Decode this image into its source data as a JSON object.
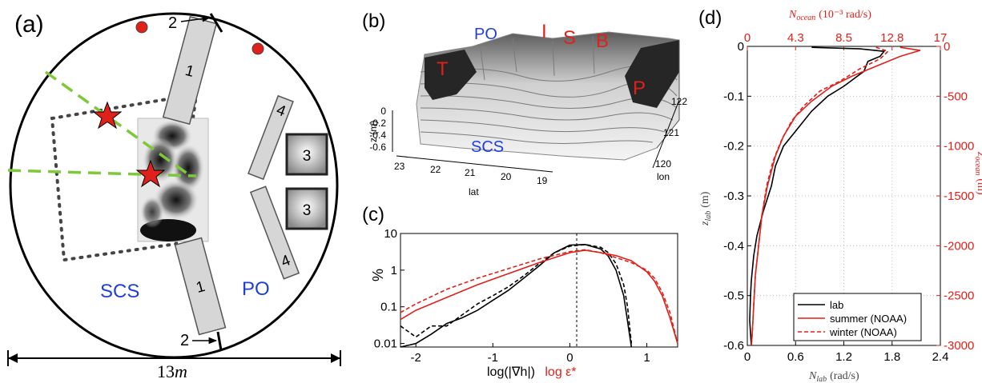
{
  "colors": {
    "red": "#e0201a",
    "blue": "#1f3fd8",
    "green": "#7ec83a",
    "grey": "#d6d6d6"
  },
  "panel_a": {
    "label": "(a)",
    "scale": "13",
    "scale_unit": "m",
    "region_left": "SCS",
    "region_right": "PO",
    "blocks": [
      "1",
      "1",
      "3",
      "3",
      "4",
      "4"
    ],
    "gates": [
      "2",
      "2"
    ],
    "icons": [
      "red-dot-icon",
      "red-star-icon",
      "arrow-icon"
    ]
  },
  "panel_b": {
    "label": "(b)",
    "region_top": "PO",
    "region_bottom": "SCS",
    "letters": [
      "T",
      "I",
      "S",
      "B",
      "P"
    ],
    "z_label": "z (m)",
    "z_ticks": [
      "0",
      "-0.2",
      "-0.4",
      "-0.6"
    ],
    "lat_label": "lat",
    "lat_ticks": [
      "23",
      "22",
      "21",
      "20",
      "19"
    ],
    "lon_label": "lon",
    "lon_ticks": [
      "122",
      "121",
      "120"
    ]
  },
  "panel_c": {
    "label": "(c)",
    "ylabel": "%",
    "xlabel_black": "log(|∇h|)",
    "xlabel_red": "log ε*",
    "y_ticks": [
      "10",
      "1",
      "0.1",
      "0.01"
    ],
    "x_ticks": [
      "-2",
      "-1",
      "0",
      "1"
    ]
  },
  "panel_d": {
    "label": "(d)",
    "top_label": "N",
    "top_label_sub": "ocean",
    "top_label_units": "(10⁻³ rad/s)",
    "bottom_label": "N",
    "bottom_label_sub": "lab",
    "bottom_label_units": "(rad/s)",
    "left_label": "z",
    "left_label_sub": "lab",
    "left_label_units": "(m)",
    "right_label": "z",
    "right_label_sub": "ocean",
    "right_label_units": "(m)",
    "top_ticks": [
      "0",
      "4.3",
      "8.5",
      "12.8",
      "17"
    ],
    "bottom_ticks": [
      "0",
      "0.6",
      "1.2",
      "1.8",
      "2.4"
    ],
    "left_ticks": [
      "0",
      "-0.1",
      "-0.2",
      "-0.3",
      "-0.4",
      "-0.5",
      "-0.6"
    ],
    "right_ticks": [
      "0",
      "-500",
      "-1000",
      "-1500",
      "-2000",
      "-2500",
      "-3000"
    ],
    "legend": [
      "lab",
      "summer (NOAA)",
      "winter (NOAA)"
    ]
  },
  "chart_data": [
    {
      "type": "line",
      "panel": "(c)",
      "xlabel": "log(|∇h|)  log ε*",
      "ylabel": "%",
      "xlim": [
        -2.2,
        1.4
      ],
      "ylim": [
        0.008,
        10
      ],
      "yscale": "log",
      "grid": false,
      "series": [
        {
          "line": "solid",
          "color": "black",
          "x": [
            -2.2,
            -2.0,
            -1.8,
            -1.6,
            -1.4,
            -1.2,
            -1.0,
            -0.8,
            -0.6,
            -0.4,
            -0.2,
            0.0,
            0.2,
            0.4,
            0.5,
            0.6,
            0.7,
            0.75,
            0.8
          ],
          "y": [
            0.008,
            0.01,
            0.018,
            0.035,
            0.05,
            0.08,
            0.15,
            0.28,
            0.6,
            1.3,
            3.0,
            4.8,
            5.0,
            3.8,
            2.4,
            1.0,
            0.2,
            0.04,
            0.008
          ]
        },
        {
          "line": "dashed",
          "color": "black",
          "x": [
            -2.2,
            -2.0,
            -1.8,
            -1.6,
            -1.4,
            -1.2,
            -1.0,
            -0.8,
            -0.6,
            -0.4,
            -0.2,
            0.0,
            0.2,
            0.4,
            0.5,
            0.6,
            0.7,
            0.75,
            0.8
          ],
          "y": [
            0.03,
            0.015,
            0.03,
            0.03,
            0.06,
            0.12,
            0.2,
            0.35,
            0.7,
            1.5,
            3.0,
            4.5,
            5.0,
            4.2,
            3.0,
            1.5,
            0.4,
            0.1,
            0.01
          ]
        },
        {
          "line": "solid",
          "color": "red",
          "x": [
            -2.2,
            -2.0,
            -1.6,
            -1.2,
            -0.8,
            -0.4,
            0.0,
            0.2,
            0.4,
            0.6,
            0.8,
            1.0,
            1.1,
            1.2,
            1.3,
            1.4
          ],
          "y": [
            0.045,
            0.08,
            0.18,
            0.4,
            0.8,
            1.6,
            3.0,
            3.5,
            3.0,
            2.5,
            1.8,
            0.9,
            0.5,
            0.2,
            0.05,
            0.01
          ]
        },
        {
          "line": "dashed",
          "color": "red",
          "x": [
            -2.2,
            -2.0,
            -1.6,
            -1.2,
            -0.8,
            -0.4,
            0.0,
            0.2,
            0.4,
            0.6,
            0.8,
            1.0,
            1.1,
            1.2,
            1.3,
            1.4
          ],
          "y": [
            0.07,
            0.12,
            0.3,
            0.6,
            1.1,
            2.0,
            3.2,
            3.6,
            3.0,
            2.2,
            1.6,
            1.0,
            0.6,
            0.25,
            0.07,
            0.01
          ]
        }
      ]
    },
    {
      "type": "line",
      "panel": "(d)",
      "xlabel": "N_lab (rad/s)",
      "ylabel": "z_lab (m)",
      "xlim": [
        0,
        2.4
      ],
      "ylim": [
        -0.6,
        0
      ],
      "grid": true,
      "legend_position": "bottom-right",
      "series": [
        {
          "name": "lab",
          "line": "solid",
          "color": "black",
          "x": [
            0.8,
            1.4,
            1.7,
            1.65,
            1.5,
            1.45,
            1.2,
            1.0,
            0.8,
            0.6,
            0.45,
            0.35,
            0.3,
            0.2,
            0.12,
            0.08,
            0.05,
            0.04,
            0.03,
            0.05
          ],
          "y": [
            -0.002,
            -0.005,
            -0.01,
            -0.02,
            -0.03,
            -0.05,
            -0.08,
            -0.1,
            -0.13,
            -0.17,
            -0.2,
            -0.24,
            -0.28,
            -0.33,
            -0.38,
            -0.42,
            -0.47,
            -0.5,
            -0.55,
            -0.6
          ]
        },
        {
          "name": "summer (NOAA)",
          "line": "solid",
          "color": "red",
          "x": [
            1.9,
            2.15,
            1.9,
            1.6,
            1.3,
            1.05,
            0.8,
            0.6,
            0.45,
            0.35,
            0.25,
            0.18,
            0.14,
            0.1,
            0.08,
            0.06,
            0.05
          ],
          "y": [
            -0.002,
            -0.008,
            -0.02,
            -0.04,
            -0.06,
            -0.08,
            -0.11,
            -0.14,
            -0.18,
            -0.22,
            -0.28,
            -0.34,
            -0.4,
            -0.46,
            -0.52,
            -0.58,
            -0.6
          ]
        },
        {
          "name": "winter (NOAA)",
          "line": "dashed",
          "color": "red",
          "x": [
            1.6,
            1.75,
            1.65,
            1.4,
            1.15,
            0.9,
            0.7,
            0.55,
            0.42,
            0.32,
            0.24,
            0.18,
            0.14,
            0.1,
            0.08,
            0.06,
            0.05
          ],
          "y": [
            -0.002,
            -0.01,
            -0.025,
            -0.045,
            -0.07,
            -0.09,
            -0.12,
            -0.15,
            -0.19,
            -0.23,
            -0.28,
            -0.34,
            -0.4,
            -0.46,
            -0.52,
            -0.58,
            -0.6
          ]
        }
      ]
    }
  ]
}
